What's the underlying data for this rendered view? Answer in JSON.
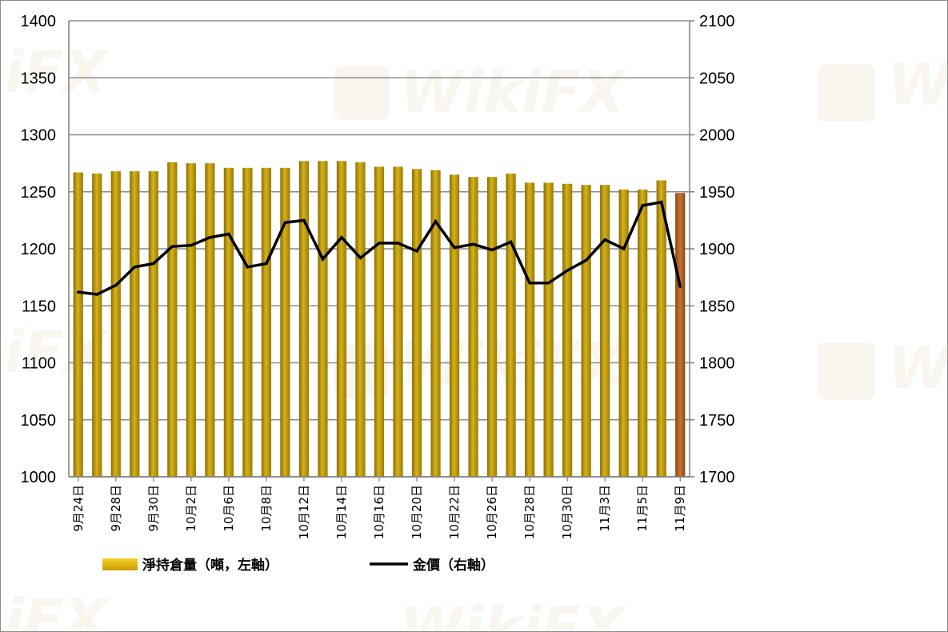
{
  "chart_data": {
    "type": "bar+line",
    "categories": [
      "9月24日",
      "9月25日",
      "9月28日",
      "9月29日",
      "9月30日",
      "10月1日",
      "10月2日",
      "10月5日",
      "10月6日",
      "10月7日",
      "10月8日",
      "10月9日",
      "10月12日",
      "10月13日",
      "10月14日",
      "10月15日",
      "10月16日",
      "10月19日",
      "10月20日",
      "10月21日",
      "10月22日",
      "10月23日",
      "10月26日",
      "10月27日",
      "10月28日",
      "10月29日",
      "10月30日",
      "11月2日",
      "11月3日",
      "11月4日",
      "11月5日",
      "11月6日",
      "11月9日"
    ],
    "x_tick_labels": [
      "9月24日",
      "9月28日",
      "9月30日",
      "10月2日",
      "10月6日",
      "10月8日",
      "10月12日",
      "10月14日",
      "10月16日",
      "10月20日",
      "10月22日",
      "10月26日",
      "10月28日",
      "10月30日",
      "11月3日",
      "11月5日",
      "11月9日"
    ],
    "series": [
      {
        "name": "淨持倉量（噸，左軸）",
        "type": "bar",
        "axis": "left",
        "color": "#c9a400",
        "last_bar_color": "#b5651d",
        "values": [
          1267,
          1266,
          1268,
          1268,
          1268,
          1276,
          1275,
          1275,
          1271,
          1271,
          1271,
          1271,
          1277,
          1277,
          1277,
          1276,
          1272,
          1272,
          1270,
          1269,
          1265,
          1263,
          1263,
          1266,
          1258,
          1258,
          1257,
          1256,
          1256,
          1252,
          1252,
          1260,
          1249
        ]
      },
      {
        "name": "金價（右軸）",
        "type": "line",
        "axis": "right",
        "color": "#000000",
        "values": [
          1862,
          1860,
          1868,
          1884,
          1887,
          1902,
          1903,
          1910,
          1913,
          1884,
          1887,
          1923,
          1925,
          1891,
          1910,
          1892,
          1905,
          1905,
          1898,
          1924,
          1901,
          1904,
          1899,
          1906,
          1870,
          1870,
          1881,
          1890,
          1908,
          1900,
          1938,
          1941,
          1867
        ]
      }
    ],
    "y_left": {
      "ticks": [
        "1000",
        "1050",
        "1100",
        "1150",
        "1200",
        "1250",
        "1300",
        "1350",
        "1400"
      ],
      "ylim": [
        1000,
        1400
      ]
    },
    "y_right": {
      "ticks": [
        "1700",
        "1750",
        "1800",
        "1850",
        "1900",
        "1950",
        "2000",
        "2050",
        "2100"
      ],
      "ylim": [
        1700,
        2100
      ]
    },
    "grid": true,
    "legend_position": "bottom",
    "watermark": "WikiFX"
  }
}
